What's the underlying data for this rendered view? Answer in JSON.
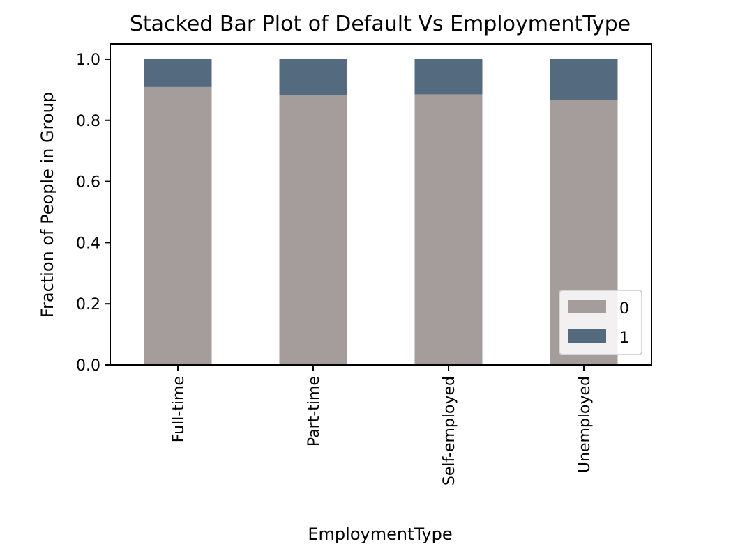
{
  "chart_data": {
    "type": "bar",
    "stacked": true,
    "title": "Stacked Bar Plot of Default Vs EmploymentType",
    "xlabel": "EmploymentType",
    "ylabel": "Fraction of People in Group",
    "categories": [
      "Full-time",
      "Part-time",
      "Self-employed",
      "Unemployed"
    ],
    "series": [
      {
        "name": "0",
        "color": "#a59d9c",
        "values": [
          0.909,
          0.882,
          0.885,
          0.867
        ]
      },
      {
        "name": "1",
        "color": "#546a7f",
        "values": [
          0.091,
          0.118,
          0.115,
          0.133
        ]
      }
    ],
    "ylim": [
      0,
      1.05
    ],
    "yticks": [
      0.0,
      0.2,
      0.4,
      0.6,
      0.8,
      1.0
    ],
    "ytick_labels": [
      "0.0",
      "0.2",
      "0.4",
      "0.6",
      "0.8",
      "1.0"
    ],
    "grid": false,
    "legend_position": "lower-right"
  }
}
